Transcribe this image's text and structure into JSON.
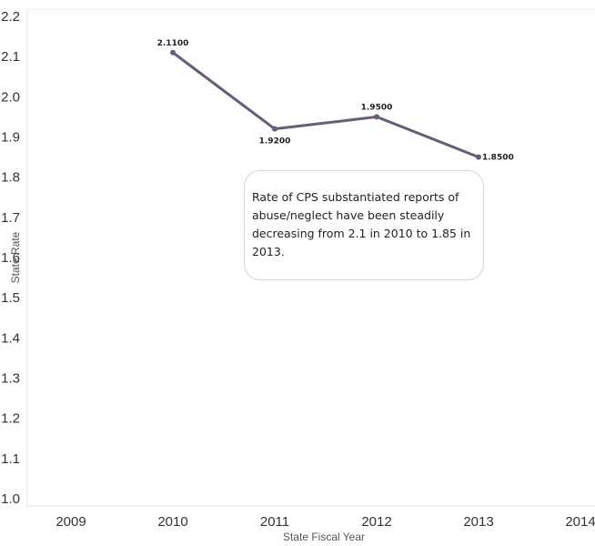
{
  "chart_data": {
    "type": "line",
    "xlabel": "State Fiscal Year",
    "ylabel": "State Rate",
    "x_ticks": [
      "2009",
      "2010",
      "2011",
      "2012",
      "2013",
      "2014"
    ],
    "xlim": [
      2009,
      2014
    ],
    "y_ticks": [
      "1.0",
      "1.1",
      "1.2",
      "1.3",
      "1.4",
      "1.5",
      "1.6",
      "1.7",
      "1.8",
      "1.9",
      "2.0",
      "2.1",
      "2.2"
    ],
    "ylim": [
      1.0,
      2.2
    ],
    "grid": false,
    "series": [
      {
        "color": "#6b5b7a",
        "points": [
          {
            "x": 2010,
            "y": 2.11,
            "label": "2.1100"
          },
          {
            "x": 2011,
            "y": 1.92,
            "label": "1.9200"
          },
          {
            "x": 2012,
            "y": 1.95,
            "label": "1.9500"
          },
          {
            "x": 2013,
            "y": 1.85,
            "label": "1.8500"
          }
        ]
      }
    ],
    "annotation": "Rate of CPS substantiated reports of abuse/neglect have been steadily decreasing from 2.1 in 2010 to 1.85 in 2013."
  }
}
